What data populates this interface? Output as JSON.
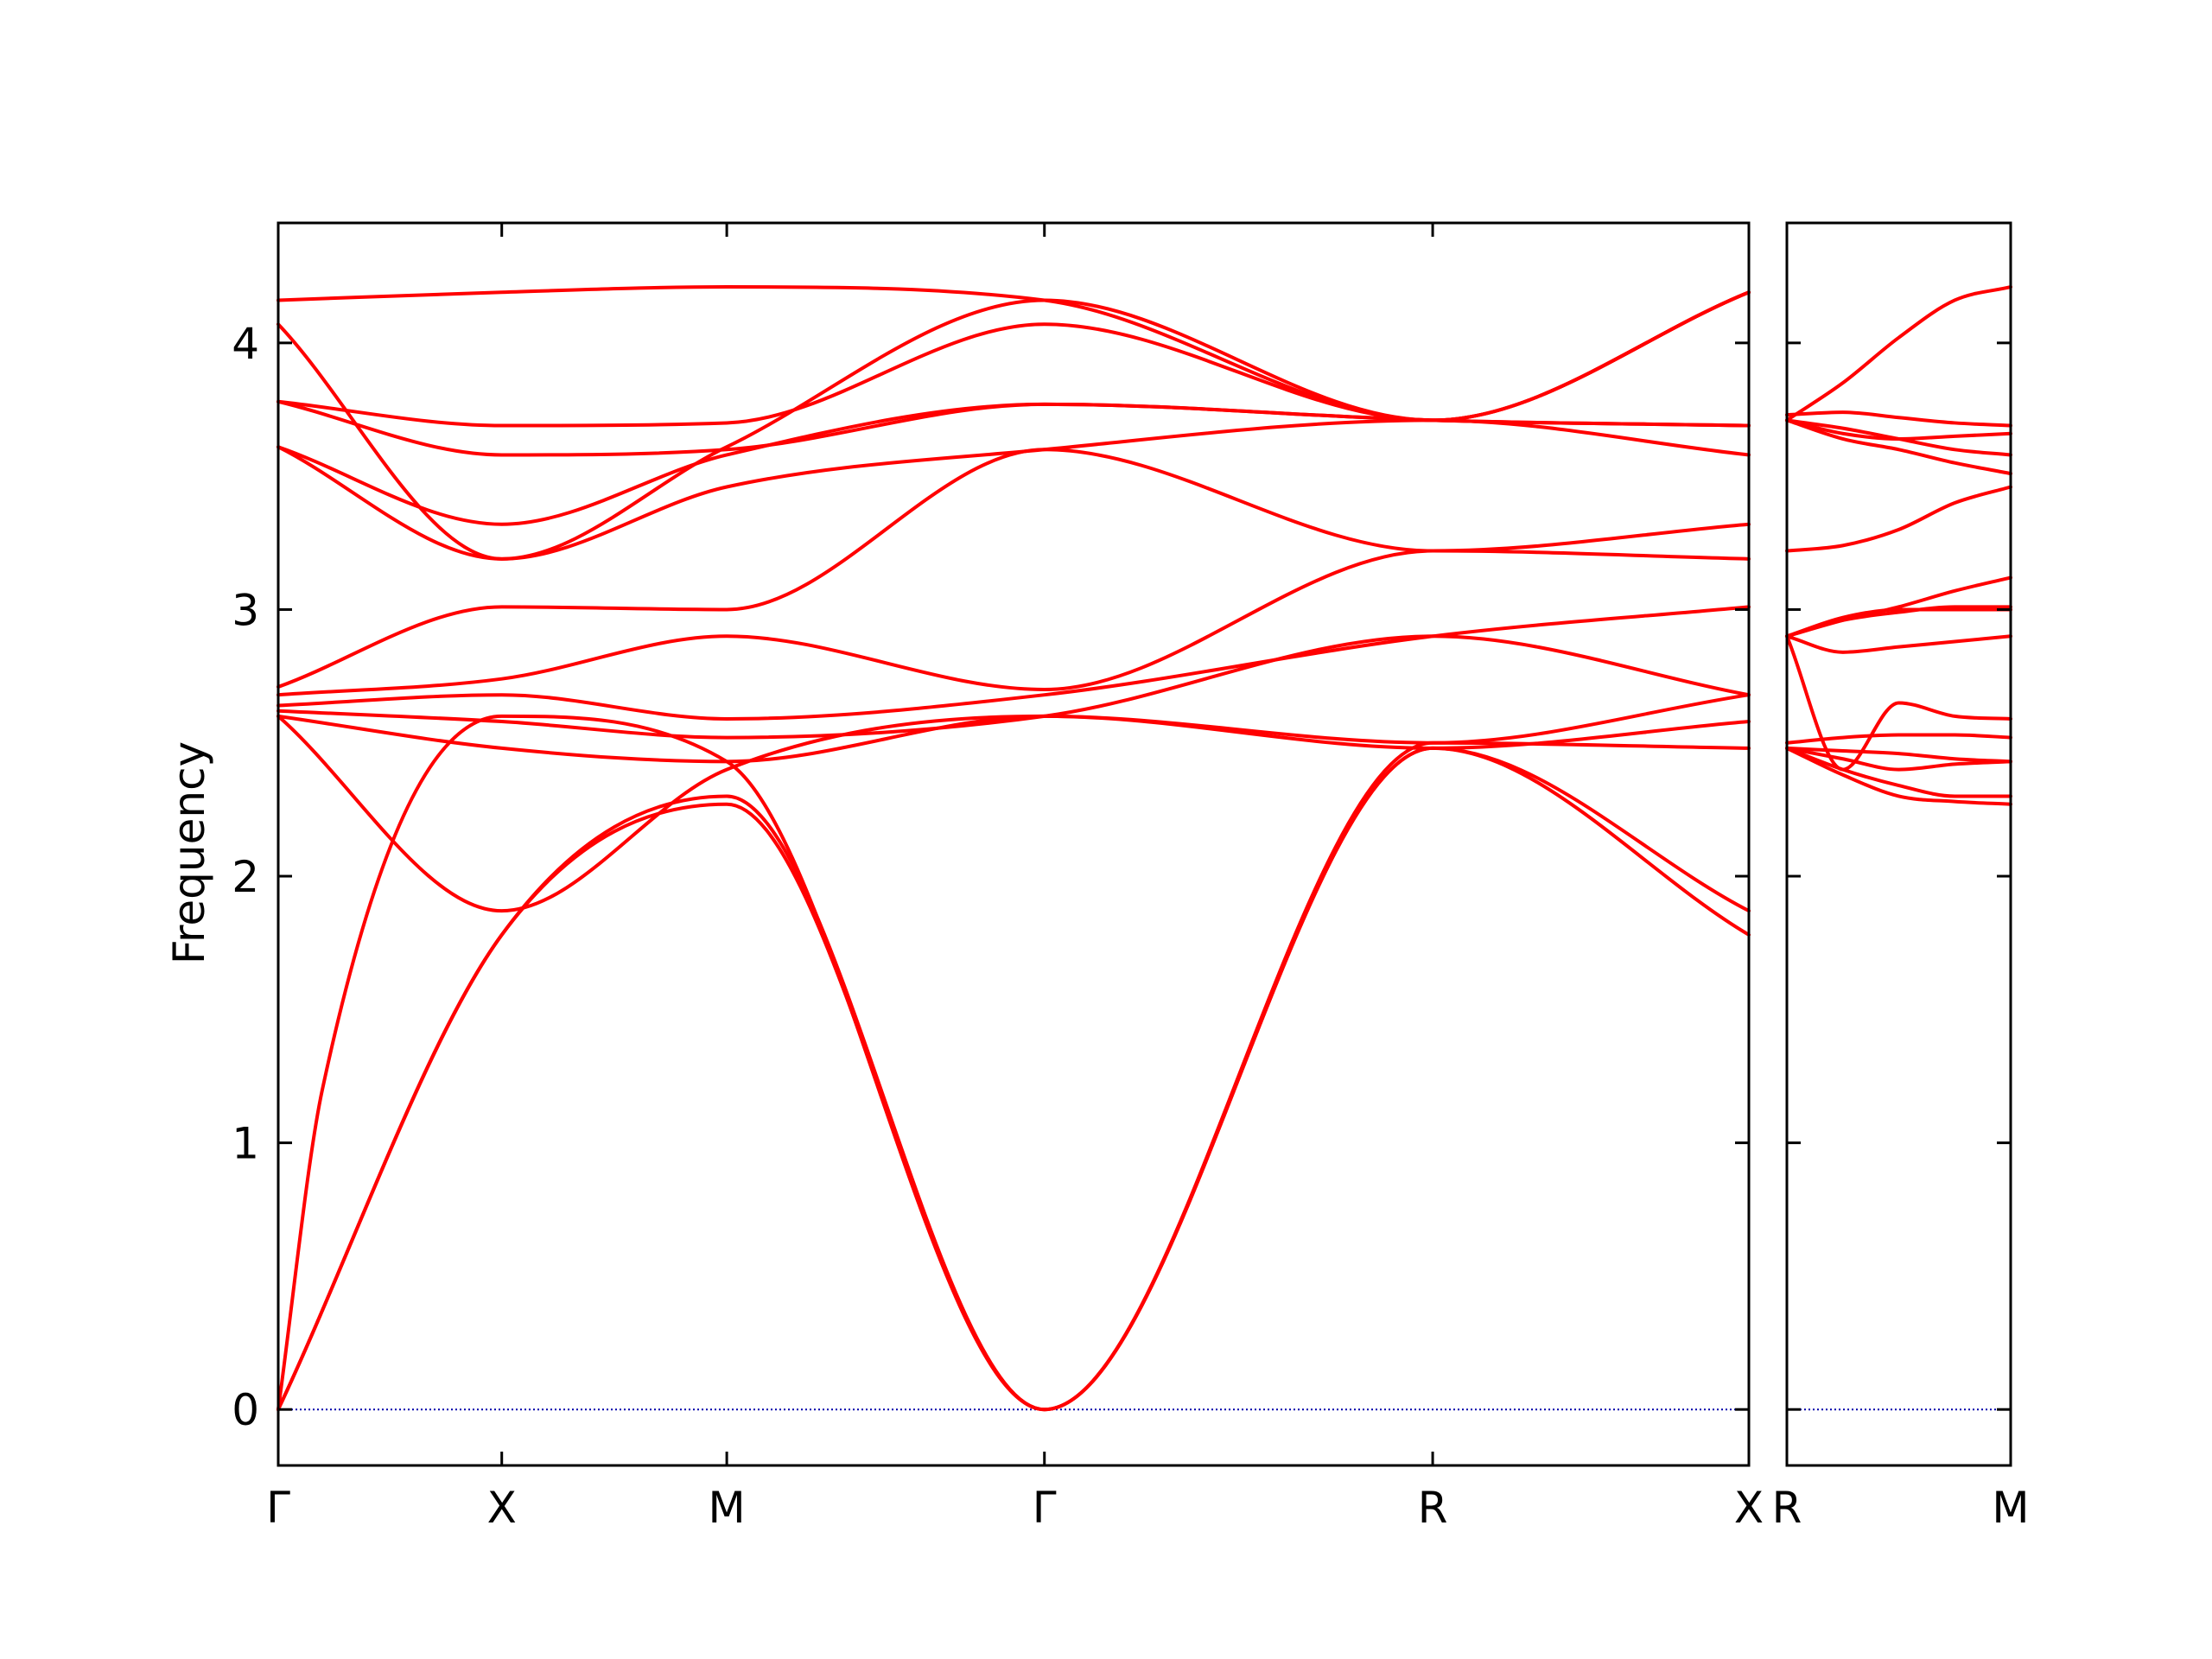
{
  "chart_data": {
    "type": "line",
    "title": "",
    "xlabel": "",
    "ylabel": "Frequency",
    "ylim": [
      -0.21,
      4.45
    ],
    "yticks": [
      0,
      1,
      2,
      3,
      4
    ],
    "grid": false,
    "legend": "none",
    "colors": {
      "bands": "#ff0000",
      "zero_line": "#0000aa",
      "axes": "#000000"
    },
    "panels": [
      {
        "name": "left",
        "xlim": [
          0,
          1.0
        ],
        "high_symmetry_points": [
          {
            "label": "Γ",
            "x": 0.0
          },
          {
            "label": "X",
            "x": 0.152
          },
          {
            "label": "M",
            "x": 0.305
          },
          {
            "label": "Γ",
            "x": 0.521
          },
          {
            "label": "R",
            "x": 0.785
          },
          {
            "label": "X",
            "x": 1.0
          }
        ],
        "bands": [
          {
            "x": [
              0,
              0.152,
              0.305,
              0.521,
              0.785,
              1.0
            ],
            "y": [
              0.0,
              1.78,
              2.27,
              0.0,
              2.48,
              1.78
            ]
          },
          {
            "x": [
              0,
              0.152,
              0.305,
              0.521,
              0.785,
              1.0
            ],
            "y": [
              0.0,
              1.78,
              2.3,
              0.0,
              2.48,
              1.87
            ]
          },
          {
            "x": [
              0,
              0.03,
              0.152,
              0.305,
              0.521,
              0.785,
              1.0
            ],
            "y": [
              0.0,
              1.2,
              2.6,
              2.43,
              0.0,
              2.5,
              2.48
            ]
          },
          {
            "x": [
              0,
              0.152,
              0.305,
              0.521,
              0.785,
              1.0
            ],
            "y": [
              2.6,
              1.87,
              2.4,
              2.6,
              2.48,
              2.58
            ]
          },
          {
            "x": [
              0,
              0.152,
              0.305,
              0.521,
              0.785,
              1.0
            ],
            "y": [
              2.6,
              2.48,
              2.43,
              2.6,
              2.5,
              2.68
            ]
          },
          {
            "x": [
              0,
              0.152,
              0.305,
              0.521,
              0.785,
              1.0
            ],
            "y": [
              2.62,
              2.58,
              2.52,
              2.6,
              2.9,
              2.68
            ]
          },
          {
            "x": [
              0,
              0.152,
              0.305,
              0.521,
              0.785,
              1.0
            ],
            "y": [
              2.64,
              2.68,
              2.59,
              2.68,
              2.9,
              3.01
            ]
          },
          {
            "x": [
              0,
              0.152,
              0.305,
              0.521,
              0.785,
              1.0
            ],
            "y": [
              2.68,
              2.74,
              2.9,
              2.7,
              3.22,
              3.19
            ]
          },
          {
            "x": [
              0,
              0.152,
              0.305,
              0.521,
              0.785,
              1.0
            ],
            "y": [
              2.71,
              3.01,
              3.0,
              3.6,
              3.22,
              3.32
            ]
          },
          {
            "x": [
              0,
              0.152,
              0.305,
              0.521,
              0.785,
              1.0
            ],
            "y": [
              3.61,
              3.19,
              3.46,
              3.6,
              3.71,
              3.58
            ]
          },
          {
            "x": [
              0,
              0.152,
              0.305,
              0.521,
              0.785,
              1.0
            ],
            "y": [
              3.61,
              3.32,
              3.58,
              3.77,
              3.71,
              3.69
            ]
          },
          {
            "x": [
              0,
              0.152,
              0.305,
              0.521,
              0.785,
              1.0
            ],
            "y": [
              3.78,
              3.58,
              3.6,
              3.77,
              3.71,
              3.69
            ]
          },
          {
            "x": [
              0,
              0.152,
              0.305,
              0.521,
              0.785,
              1.0
            ],
            "y": [
              3.78,
              3.69,
              3.7,
              4.07,
              3.71,
              4.19
            ]
          },
          {
            "x": [
              0,
              0.152,
              0.305,
              0.521,
              0.785,
              1.0
            ],
            "y": [
              4.07,
              3.19,
              3.61,
              4.16,
              3.71,
              4.19
            ]
          },
          {
            "x": [
              0,
              0.152,
              0.305,
              0.521,
              0.785,
              1.0
            ],
            "y": [
              4.16,
              4.19,
              4.21,
              4.16,
              3.71,
              4.19
            ]
          }
        ]
      },
      {
        "name": "right",
        "xlim": [
          0,
          1.0
        ],
        "high_symmetry_points": [
          {
            "label": "R",
            "x": 0.0
          },
          {
            "label": "M",
            "x": 1.0
          }
        ],
        "bands": [
          {
            "x": [
              0,
              0.25,
              0.5,
              0.75,
              1.0
            ],
            "y": [
              2.48,
              2.38,
              2.3,
              2.28,
              2.27
            ]
          },
          {
            "x": [
              0,
              0.25,
              0.5,
              0.75,
              1.0
            ],
            "y": [
              2.48,
              2.4,
              2.34,
              2.3,
              2.3
            ]
          },
          {
            "x": [
              0,
              0.25,
              0.5,
              0.75,
              1.0
            ],
            "y": [
              2.48,
              2.44,
              2.4,
              2.42,
              2.43
            ]
          },
          {
            "x": [
              0,
              0.25,
              0.5,
              0.75,
              1.0
            ],
            "y": [
              2.48,
              2.47,
              2.46,
              2.44,
              2.43
            ]
          },
          {
            "x": [
              0,
              0.25,
              0.5,
              0.75,
              1.0
            ],
            "y": [
              2.5,
              2.52,
              2.53,
              2.53,
              2.52
            ]
          },
          {
            "x": [
              0,
              0.25,
              0.5,
              0.75,
              1.0
            ],
            "y": [
              2.9,
              2.4,
              2.65,
              2.6,
              2.59
            ]
          },
          {
            "x": [
              0,
              0.25,
              0.5,
              0.75,
              1.0
            ],
            "y": [
              2.9,
              2.84,
              2.86,
              2.88,
              2.9
            ]
          },
          {
            "x": [
              0,
              0.25,
              0.5,
              0.75,
              1.0
            ],
            "y": [
              2.9,
              2.97,
              3.0,
              3.0,
              3.0
            ]
          },
          {
            "x": [
              0,
              0.25,
              0.5,
              0.75,
              1.0
            ],
            "y": [
              2.9,
              2.96,
              2.99,
              3.01,
              3.01
            ]
          },
          {
            "x": [
              0,
              0.25,
              0.5,
              0.75,
              1.0
            ],
            "y": [
              2.9,
              2.96,
              3.01,
              3.07,
              3.12
            ]
          },
          {
            "x": [
              0,
              0.25,
              0.5,
              0.75,
              1.0
            ],
            "y": [
              3.22,
              3.24,
              3.3,
              3.4,
              3.46
            ]
          },
          {
            "x": [
              0,
              0.25,
              0.5,
              0.75,
              1.0
            ],
            "y": [
              3.71,
              3.64,
              3.6,
              3.55,
              3.51
            ]
          },
          {
            "x": [
              0,
              0.25,
              0.5,
              0.75,
              1.0
            ],
            "y": [
              3.71,
              3.68,
              3.64,
              3.6,
              3.58
            ]
          },
          {
            "x": [
              0,
              0.25,
              0.5,
              0.75,
              1.0
            ],
            "y": [
              3.71,
              3.66,
              3.64,
              3.65,
              3.66
            ]
          },
          {
            "x": [
              0,
              0.25,
              0.5,
              0.75,
              1.0
            ],
            "y": [
              3.73,
              3.74,
              3.72,
              3.7,
              3.69
            ]
          },
          {
            "x": [
              0,
              0.25,
              0.5,
              0.75,
              1.0
            ],
            "y": [
              3.71,
              3.85,
              4.02,
              4.16,
              4.21
            ]
          }
        ]
      }
    ]
  }
}
